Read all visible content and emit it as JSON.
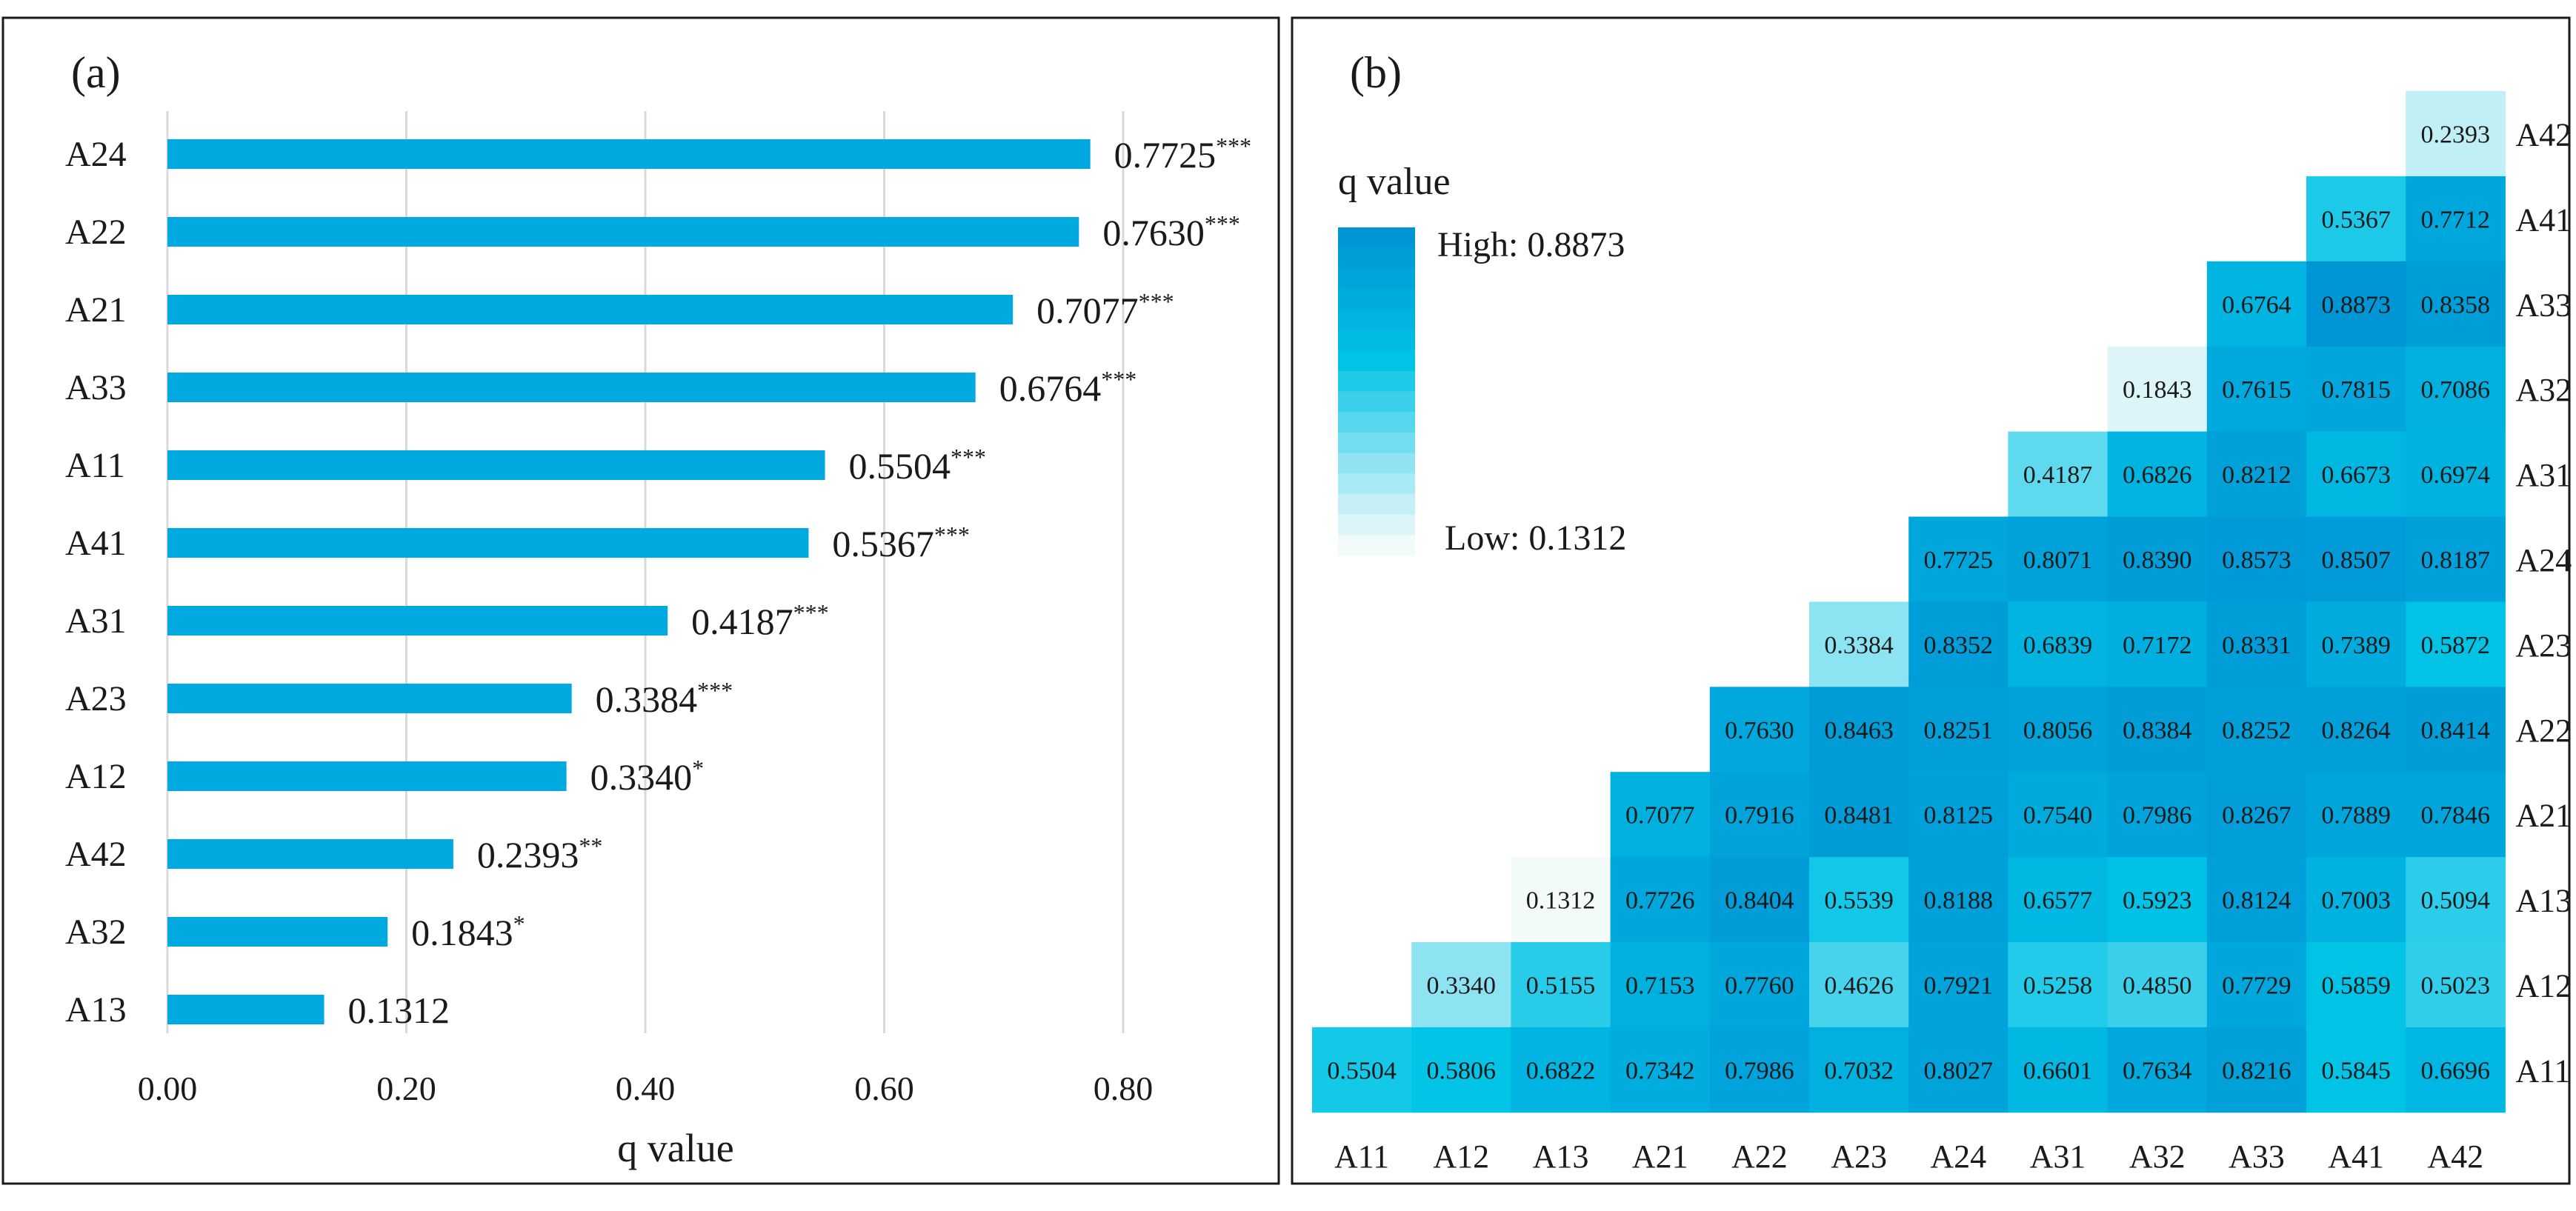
{
  "chart_data": [
    {
      "panel_label": "(a)",
      "type": "bar",
      "orientation": "horizontal",
      "categories": [
        "A24",
        "A22",
        "A21",
        "A33",
        "A11",
        "A41",
        "A31",
        "A23",
        "A12",
        "A42",
        "A32",
        "A13"
      ],
      "values": [
        0.7725,
        0.763,
        0.7077,
        0.6764,
        0.5504,
        0.5367,
        0.4187,
        0.3384,
        0.334,
        0.2393,
        0.1843,
        0.1312
      ],
      "value_labels": [
        "0.7725",
        "0.7630",
        "0.7077",
        "0.6764",
        "0.5504",
        "0.5367",
        "0.4187",
        "0.3384",
        "0.3340",
        "0.2393",
        "0.1843",
        "0.1312"
      ],
      "significance": [
        "***",
        "***",
        "***",
        "***",
        "***",
        "***",
        "***",
        "***",
        "*",
        "**",
        "*",
        ""
      ],
      "xlabel": "q value",
      "xlim": [
        0,
        0.88
      ],
      "xticks": [
        0,
        0.2,
        0.4,
        0.6,
        0.8
      ],
      "xtick_labels": [
        "0.00",
        "0.20",
        "0.40",
        "0.60",
        "0.80"
      ],
      "grid": "vertical",
      "bar_color": "#00A9E0"
    },
    {
      "panel_label": "(b)",
      "type": "heatmap",
      "shape": "upper-triangular",
      "x_categories": [
        "A11",
        "A12",
        "A13",
        "A21",
        "A22",
        "A23",
        "A24",
        "A31",
        "A32",
        "A33",
        "A41",
        "A42"
      ],
      "y_categories": [
        "A42",
        "A41",
        "A33",
        "A32",
        "A31",
        "A24",
        "A23",
        "A22",
        "A21",
        "A13",
        "A12",
        "A11"
      ],
      "rows": [
        [
          "0.2393"
        ],
        [
          "0.5367",
          "0.7712"
        ],
        [
          "0.6764",
          "0.8873",
          "0.8358"
        ],
        [
          "0.1843",
          "0.7615",
          "0.7815",
          "0.7086"
        ],
        [
          "0.4187",
          "0.6826",
          "0.8212",
          "0.6673",
          "0.6974"
        ],
        [
          "0.7725",
          "0.8071",
          "0.8390",
          "0.8573",
          "0.8507",
          "0.8187"
        ],
        [
          "0.3384",
          "0.8352",
          "0.6839",
          "0.7172",
          "0.8331",
          "0.7389",
          "0.5872"
        ],
        [
          "0.7630",
          "0.8463",
          "0.8251",
          "0.8056",
          "0.8384",
          "0.8252",
          "0.8264",
          "0.8414"
        ],
        [
          "0.7077",
          "0.7916",
          "0.8481",
          "0.8125",
          "0.7540",
          "0.7986",
          "0.8267",
          "0.7889",
          "0.7846"
        ],
        [
          "0.1312",
          "0.7726",
          "0.8404",
          "0.5539",
          "0.8188",
          "0.6577",
          "0.5923",
          "0.8124",
          "0.7003",
          "0.5094"
        ],
        [
          "0.3340",
          "0.5155",
          "0.7153",
          "0.7760",
          "0.4626",
          "0.7921",
          "0.5258",
          "0.4850",
          "0.7729",
          "0.5859",
          "0.5023"
        ],
        [
          "0.5504",
          "0.5806",
          "0.6822",
          "0.7342",
          "0.7986",
          "0.7032",
          "0.8027",
          "0.6601",
          "0.7634",
          "0.8216",
          "0.5845",
          "0.6696"
        ]
      ],
      "legend": {
        "title": "q value",
        "high_label": "High: 0.8873",
        "low_label": "Low: 0.1312",
        "high": 0.8873,
        "low": 0.1312,
        "placement": "top-left"
      },
      "colors": {
        "high": "#0096D6",
        "mid": "#00C3E6",
        "low": "#F2FAFA"
      }
    }
  ]
}
